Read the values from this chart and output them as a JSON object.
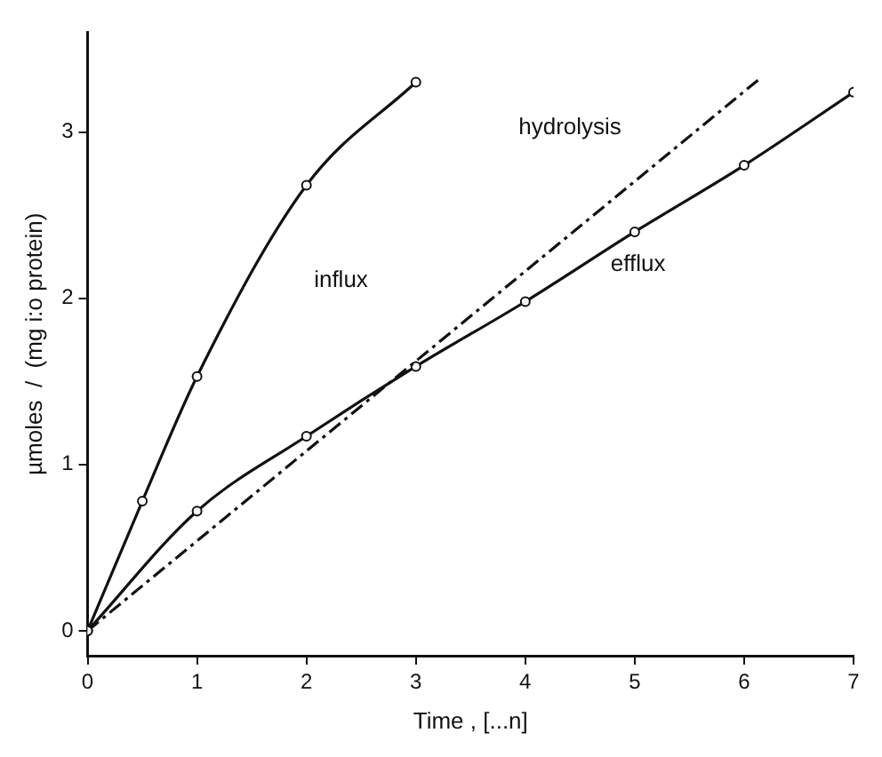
{
  "chart_data": {
    "type": "line",
    "xlabel": "Time , [...n]",
    "ylabel": "µmoles  /  (mg i:o protein)",
    "xlim": [
      0,
      7
    ],
    "xticks": [
      0,
      1,
      2,
      3,
      4,
      5,
      6,
      7
    ],
    "ylim": [
      -0.15,
      3.6
    ],
    "yticks": [
      0,
      1,
      2,
      3
    ],
    "grid": false,
    "legend": false,
    "series": [
      {
        "name": "influx",
        "color": "#111111",
        "marker": "circle",
        "line_style": "solid",
        "x": [
          0,
          0.5,
          1,
          2,
          3
        ],
        "values": [
          0,
          0.78,
          1.53,
          2.68,
          3.3
        ]
      },
      {
        "name": "hydrolysis",
        "color": "#111111",
        "line_style": "dashed",
        "x": [
          0,
          6.14
        ],
        "values": [
          0,
          3.32
        ]
      },
      {
        "name": "efflux",
        "color": "#111111",
        "marker": "circle",
        "line_style": "solid",
        "x": [
          0,
          1,
          2,
          3,
          4,
          5,
          6,
          7
        ],
        "values": [
          0,
          0.72,
          1.17,
          1.59,
          1.98,
          2.4,
          2.8,
          3.24
        ]
      }
    ]
  }
}
